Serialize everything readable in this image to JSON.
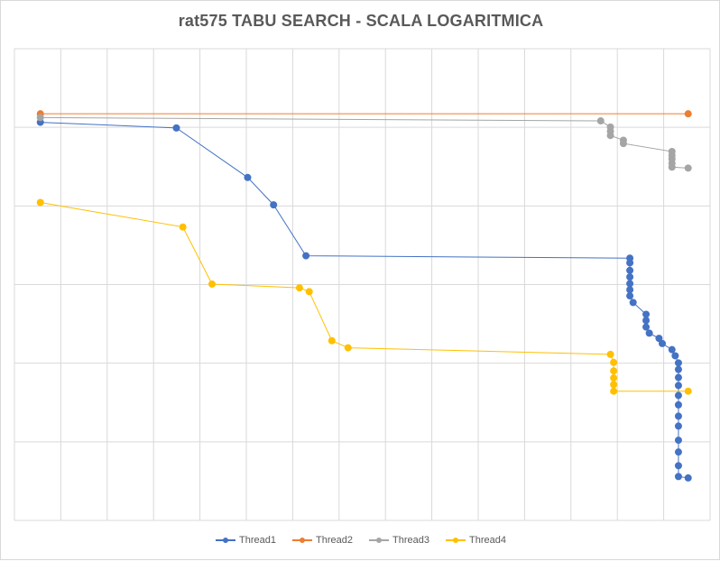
{
  "chart_data": {
    "type": "line",
    "title": "rat575 TABU SEARCH - SCALA LOGARITMICA",
    "xlabel": "",
    "ylabel": "",
    "scale": "log",
    "x_range": [
      0,
      1
    ],
    "y_range": [
      0,
      1
    ],
    "grid": true,
    "legend_position": "bottom",
    "series": [
      {
        "name": "Thread1",
        "color": "#4472C4",
        "points": [
          [
            0.04,
            0.156
          ],
          [
            0.25,
            0.168
          ],
          [
            0.36,
            0.273
          ],
          [
            0.4,
            0.331
          ],
          [
            0.45,
            0.439
          ],
          [
            0.95,
            0.444
          ],
          [
            0.95,
            0.454
          ],
          [
            0.95,
            0.47
          ],
          [
            0.95,
            0.484
          ],
          [
            0.95,
            0.498
          ],
          [
            0.95,
            0.511
          ],
          [
            0.95,
            0.524
          ],
          [
            0.955,
            0.538
          ],
          [
            0.975,
            0.563
          ],
          [
            0.975,
            0.576
          ],
          [
            0.975,
            0.59
          ],
          [
            0.98,
            0.603
          ],
          [
            0.995,
            0.614
          ],
          [
            1.0,
            0.625
          ],
          [
            1.015,
            0.638
          ],
          [
            1.02,
            0.651
          ],
          [
            1.025,
            0.666
          ],
          [
            1.025,
            0.68
          ],
          [
            1.025,
            0.697
          ],
          [
            1.025,
            0.714
          ],
          [
            1.025,
            0.735
          ],
          [
            1.025,
            0.755
          ],
          [
            1.025,
            0.779
          ],
          [
            1.025,
            0.8
          ],
          [
            1.025,
            0.83
          ],
          [
            1.025,
            0.855
          ],
          [
            1.025,
            0.884
          ],
          [
            1.025,
            0.907
          ],
          [
            1.04,
            0.91
          ]
        ]
      },
      {
        "name": "Thread2",
        "color": "#ED7D31",
        "points": [
          [
            0.04,
            0.138
          ],
          [
            1.04,
            0.138
          ]
        ]
      },
      {
        "name": "Thread3",
        "color": "#A5A5A5",
        "points": [
          [
            0.04,
            0.146
          ],
          [
            0.905,
            0.153
          ],
          [
            0.92,
            0.166
          ],
          [
            0.92,
            0.175
          ],
          [
            0.92,
            0.184
          ],
          [
            0.94,
            0.194
          ],
          [
            0.94,
            0.201
          ],
          [
            1.015,
            0.218
          ],
          [
            1.015,
            0.226
          ],
          [
            1.015,
            0.234
          ],
          [
            1.015,
            0.243
          ],
          [
            1.015,
            0.251
          ],
          [
            1.04,
            0.253
          ]
        ]
      },
      {
        "name": "Thread4",
        "color": "#FFC000",
        "points": [
          [
            0.04,
            0.326
          ],
          [
            0.26,
            0.378
          ],
          [
            0.305,
            0.499
          ],
          [
            0.44,
            0.507
          ],
          [
            0.455,
            0.515
          ],
          [
            0.49,
            0.619
          ],
          [
            0.515,
            0.634
          ],
          [
            0.92,
            0.648
          ],
          [
            0.925,
            0.665
          ],
          [
            0.925,
            0.683
          ],
          [
            0.925,
            0.698
          ],
          [
            0.925,
            0.712
          ],
          [
            0.925,
            0.726
          ],
          [
            1.04,
            0.726
          ]
        ]
      }
    ],
    "legend": [
      "Thread1",
      "Thread2",
      "Thread3",
      "Thread4"
    ]
  }
}
